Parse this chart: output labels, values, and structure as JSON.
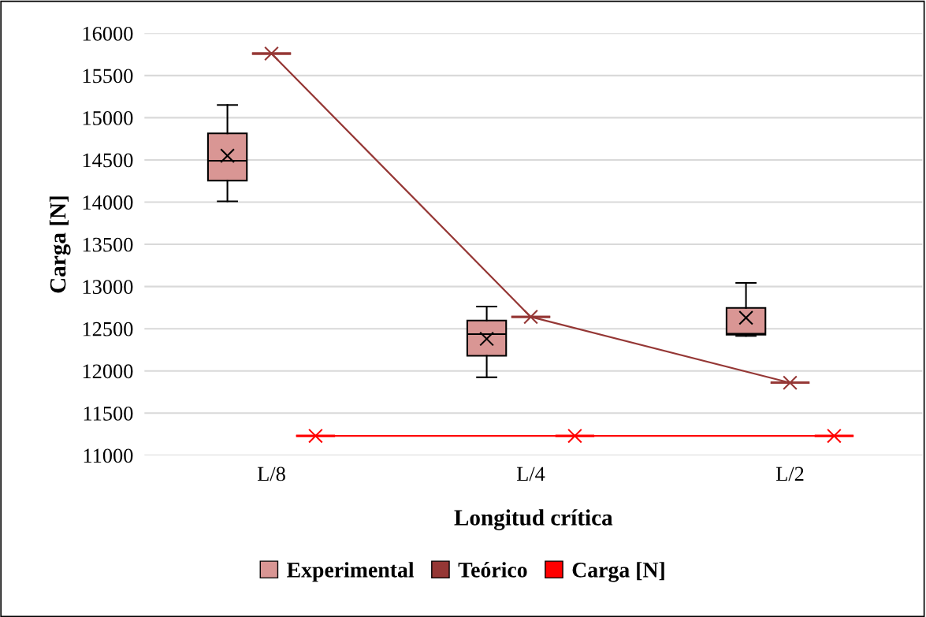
{
  "chart_data": {
    "type": "box",
    "xlabel": "Longitud crítica",
    "ylabel": "Carga [N]",
    "categories": [
      "L/8",
      "L/4",
      "L/2"
    ],
    "ylim": [
      11000,
      16000
    ],
    "yticks": [
      11000,
      11500,
      12000,
      12500,
      13000,
      13500,
      14000,
      14500,
      15000,
      15500,
      16000
    ],
    "grid": "y",
    "legend": "bottom",
    "series": [
      {
        "name": "Experimental",
        "color": "#d99694",
        "marker": "cross",
        "boxes": [
          {
            "low": 14010,
            "q1": 14255,
            "median": 14490,
            "q3": 14815,
            "high": 15150,
            "mean": 14550
          },
          {
            "low": 11925,
            "q1": 12180,
            "median": 12437,
            "q3": 12598,
            "high": 12763,
            "mean": 12380
          },
          {
            "low": 12415,
            "q1": 12430,
            "median": 12440,
            "q3": 12747,
            "high": 13043,
            "mean": 12630
          }
        ]
      },
      {
        "name": "Teórico",
        "color": "#953735",
        "marker": "cross",
        "boxes": [
          {
            "low": 15760,
            "q1": 15760,
            "median": 15760,
            "q3": 15760,
            "high": 15760,
            "mean": 15760
          },
          {
            "low": 12640,
            "q1": 12640,
            "median": 12640,
            "q3": 12640,
            "high": 12640,
            "mean": 12640
          },
          {
            "low": 11860,
            "q1": 11860,
            "median": 11860,
            "q3": 11860,
            "high": 11860,
            "mean": 11860
          }
        ]
      },
      {
        "type": "line",
        "color": "#953735",
        "line_style": "solid",
        "values": [
          15760,
          12640,
          11860
        ]
      },
      {
        "name": "Carga [N]",
        "color": "#ff0000",
        "marker": "cross",
        "boxes": [
          {
            "low": 11230,
            "q1": 11230,
            "median": 11230,
            "q3": 11230,
            "high": 11230,
            "mean": 11230
          },
          {
            "low": 11230,
            "q1": 11230,
            "median": 11230,
            "q3": 11230,
            "high": 11230,
            "mean": 11230
          },
          {
            "low": 11230,
            "q1": 11230,
            "median": 11230,
            "q3": 11230,
            "high": 11230,
            "mean": 11230
          }
        ]
      },
      {
        "type": "line",
        "color": "#ff0000",
        "line_style": "solid",
        "values": [
          11230,
          11230,
          11230
        ]
      }
    ]
  }
}
